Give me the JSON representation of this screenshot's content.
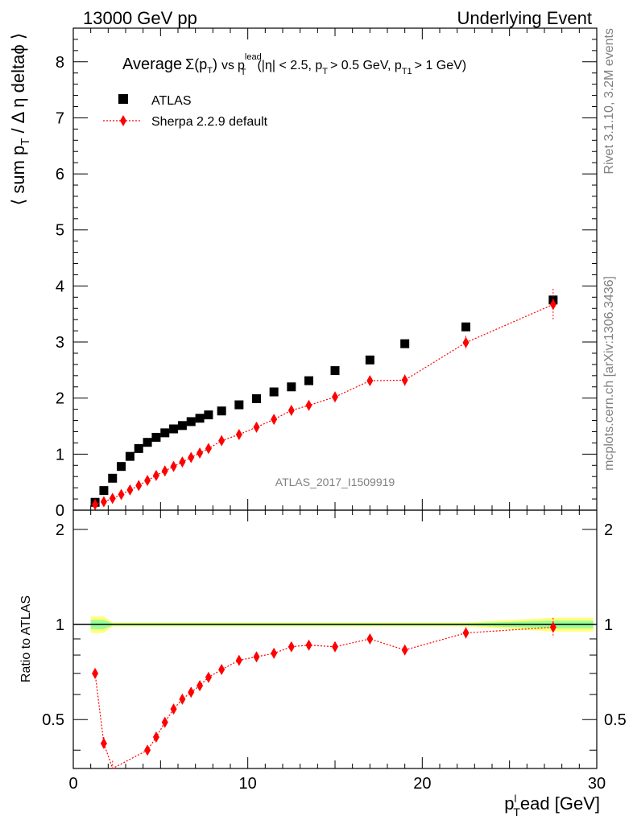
{
  "header": {
    "left": "13000 GeV pp",
    "right": "Underlying Event"
  },
  "side_labels": {
    "rivet": "Rivet 3.1.10,  3.2M events",
    "mcplots": "mcplots.cern.ch [arXiv:1306.3436]"
  },
  "analysis_id": "ATLAS_2017_I1509919",
  "chart_data": [
    {
      "type": "scatter",
      "panel": "main",
      "title": {
        "prefix": "Average",
        "sigma": "Σ(p",
        "sub_T": "T",
        "close": ")",
        "vs": "vs",
        "p": "p",
        "sup_lead": "lead",
        "rest1": "(|η| < 2.5, p",
        "rest2": "> 0.5 GeV, p",
        "sub_T1": "T1",
        "rest3": "> 1 GeV)"
      },
      "ylabel": {
        "part1": "⟨ sum p",
        "sub": "T",
        "part2": "/ Δ η deltaϕ ⟩"
      },
      "xlim": [
        0,
        30
      ],
      "ylim": [
        0,
        8.6
      ],
      "y_ticks": [
        0,
        1,
        2,
        3,
        4,
        5,
        6,
        7,
        8
      ],
      "legend_position": "top-left",
      "series": [
        {
          "name": "ATLAS",
          "color": "#000000",
          "marker": "square",
          "x": [
            1.25,
            1.75,
            2.25,
            2.75,
            3.25,
            3.75,
            4.25,
            4.75,
            5.25,
            5.75,
            6.25,
            6.75,
            7.25,
            7.75,
            8.5,
            9.5,
            10.5,
            11.5,
            12.5,
            13.5,
            15.0,
            17.0,
            19.0,
            22.5,
            27.5
          ],
          "y": [
            0.14,
            0.35,
            0.57,
            0.78,
            0.96,
            1.1,
            1.21,
            1.3,
            1.38,
            1.45,
            1.51,
            1.58,
            1.64,
            1.7,
            1.77,
            1.88,
            1.99,
            2.11,
            2.2,
            2.31,
            2.49,
            2.68,
            2.97,
            3.27,
            3.75
          ]
        },
        {
          "name": "Sherpa 2.2.9 default",
          "color": "#ff0000",
          "marker": "diamond",
          "line": "dotted",
          "x": [
            1.25,
            1.75,
            2.25,
            2.75,
            3.25,
            3.75,
            4.25,
            4.75,
            5.25,
            5.75,
            6.25,
            6.75,
            7.25,
            7.75,
            8.5,
            9.5,
            10.5,
            11.5,
            12.5,
            13.5,
            15.0,
            17.0,
            19.0,
            22.5,
            27.5
          ],
          "y": [
            0.1,
            0.15,
            0.21,
            0.28,
            0.36,
            0.44,
            0.53,
            0.62,
            0.7,
            0.78,
            0.86,
            0.94,
            1.02,
            1.1,
            1.24,
            1.35,
            1.48,
            1.62,
            1.78,
            1.87,
            2.02,
            2.31,
            2.32,
            2.99,
            3.67
          ],
          "yerr": [
            0.01,
            0.01,
            0.01,
            0.01,
            0.01,
            0.01,
            0.01,
            0.01,
            0.01,
            0.01,
            0.02,
            0.02,
            0.02,
            0.02,
            0.03,
            0.03,
            0.04,
            0.04,
            0.05,
            0.05,
            0.06,
            0.08,
            0.1,
            0.12,
            0.28
          ]
        }
      ]
    },
    {
      "type": "scatter",
      "panel": "ratio",
      "ylabel": "Ratio to ATLAS",
      "xlabel": {
        "p": "p",
        "sup": "l",
        "sub": "T",
        "rest": "ead [GeV]"
      },
      "xlim": [
        0,
        30
      ],
      "ylim": [
        0.35,
        2.3
      ],
      "y_scale": "log",
      "x_ticks": [
        0,
        10,
        20,
        30
      ],
      "y_ticks": [
        0.5,
        1,
        2
      ],
      "reference_line": 1,
      "band_colors": {
        "outer": "#ffff77",
        "inner": "#99ff99"
      },
      "series": [
        {
          "name": "Sherpa 2.2.9 default",
          "color": "#ff0000",
          "marker": "diamond",
          "line": "dotted",
          "x": [
            1.25,
            1.75,
            2.25,
            4.25,
            4.75,
            5.25,
            5.75,
            6.25,
            6.75,
            7.25,
            7.75,
            8.5,
            9.5,
            10.5,
            11.5,
            12.5,
            13.5,
            15.0,
            17.0,
            19.0,
            22.5,
            27.5
          ],
          "y": [
            0.7,
            0.42,
            0.35,
            0.4,
            0.44,
            0.49,
            0.54,
            0.58,
            0.61,
            0.64,
            0.68,
            0.72,
            0.77,
            0.79,
            0.81,
            0.85,
            0.86,
            0.85,
            0.9,
            0.83,
            0.94,
            0.98
          ],
          "yerr": [
            0.02,
            0.02,
            0.02,
            0.01,
            0.01,
            0.01,
            0.01,
            0.01,
            0.01,
            0.01,
            0.01,
            0.01,
            0.015,
            0.015,
            0.015,
            0.02,
            0.02,
            0.02,
            0.03,
            0.03,
            0.04,
            0.07
          ]
        }
      ]
    }
  ]
}
